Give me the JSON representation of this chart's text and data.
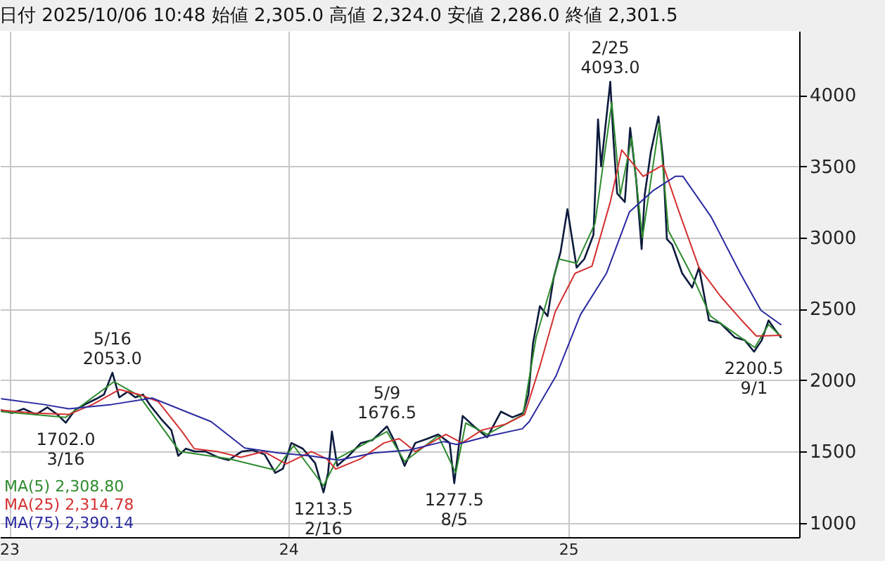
{
  "chart_data": {
    "type": "line",
    "title": "日付 2025/10/06 10:48 始値 2,305.0 高値 2,324.0 安値 2,286.0 終値 2,301.5",
    "xlim": [
      "2022-12-20",
      "2025-10-30"
    ],
    "xticks": [
      {
        "value": "2023-01-01",
        "label": "23"
      },
      {
        "value": "2024-01-01",
        "label": "24"
      },
      {
        "value": "2025-01-01",
        "label": "25"
      }
    ],
    "ylim": [
      900,
      4450
    ],
    "yticks": [
      1000,
      1500,
      2000,
      2500,
      3000,
      3500,
      4000
    ],
    "grid": true,
    "legend": "bottom left",
    "marker": "none",
    "line_style": "solid",
    "series": [
      {
        "color": "#0c1a3c",
        "x": [
          "2022-12-22",
          "2023-01-05",
          "2023-01-20",
          "2023-02-05",
          "2023-02-20",
          "2023-03-05",
          "2023-03-16",
          "2023-03-28",
          "2023-04-10",
          "2023-04-25",
          "2023-05-05",
          "2023-05-16",
          "2023-05-25",
          "2023-06-05",
          "2023-06-15",
          "2023-06-25",
          "2023-07-05",
          "2023-07-20",
          "2023-08-01",
          "2023-08-10",
          "2023-08-20",
          "2023-09-01",
          "2023-09-15",
          "2023-10-01",
          "2023-10-15",
          "2023-11-01",
          "2023-11-15",
          "2023-12-01",
          "2023-12-15",
          "2023-12-25",
          "2024-01-05",
          "2024-01-20",
          "2024-02-05",
          "2024-02-16",
          "2024-02-22",
          "2024-02-27",
          "2024-03-05",
          "2024-03-20",
          "2024-04-05",
          "2024-04-20",
          "2024-05-09",
          "2024-05-20",
          "2024-06-01",
          "2024-06-15",
          "2024-07-01",
          "2024-07-15",
          "2024-07-30",
          "2024-08-05",
          "2024-08-10",
          "2024-08-16",
          "2024-08-30",
          "2024-09-17",
          "2024-10-05",
          "2024-10-20",
          "2024-11-03",
          "2024-11-10",
          "2024-11-16",
          "2024-11-25",
          "2024-12-05",
          "2024-12-13",
          "2024-12-22",
          "2024-12-31",
          "2025-01-12",
          "2025-01-22",
          "2025-02-03",
          "2025-02-09",
          "2025-02-13",
          "2025-02-25",
          "2025-03-01",
          "2025-03-06",
          "2025-03-16",
          "2025-03-23",
          "2025-03-31",
          "2025-04-07",
          "2025-04-11",
          "2025-04-19",
          "2025-04-29",
          "2025-05-05",
          "2025-05-10",
          "2025-05-17",
          "2025-05-30",
          "2025-06-12",
          "2025-06-21",
          "2025-07-04",
          "2025-07-19",
          "2025-08-07",
          "2025-08-20",
          "2025-09-01",
          "2025-09-11",
          "2025-09-20",
          "2025-09-29",
          "2025-10-06"
        ],
        "values": [
          1790,
          1770,
          1800,
          1760,
          1810,
          1760,
          1702,
          1790,
          1830,
          1870,
          1900,
          2053,
          1880,
          1920,
          1880,
          1900,
          1820,
          1720,
          1650,
          1470,
          1520,
          1500,
          1500,
          1460,
          1440,
          1500,
          1510,
          1480,
          1350,
          1380,
          1560,
          1520,
          1420,
          1213.5,
          1350,
          1640,
          1400,
          1470,
          1560,
          1580,
          1676.5,
          1560,
          1400,
          1560,
          1590,
          1620,
          1560,
          1277.5,
          1500,
          1750,
          1680,
          1600,
          1780,
          1740,
          1770,
          1900,
          2260,
          2520,
          2450,
          2720,
          2900,
          3200,
          2790,
          2850,
          3020,
          3830,
          3500,
          4093,
          3700,
          3310,
          3250,
          3770,
          3400,
          2920,
          3300,
          3600,
          3850,
          3550,
          2990,
          2950,
          2750,
          2650,
          2790,
          2420,
          2400,
          2300,
          2280,
          2200.5,
          2280,
          2420,
          2350,
          2301.5
        ]
      },
      {
        "name": "MA(5) 2,308.80",
        "color": "#2e8b2e",
        "x": [
          "2022-12-22",
          "2023-03-16",
          "2023-05-18",
          "2023-06-20",
          "2023-08-12",
          "2023-10-15",
          "2023-12-15",
          "2024-01-08",
          "2024-02-16",
          "2024-03-05",
          "2024-05-09",
          "2024-06-01",
          "2024-07-15",
          "2024-08-07",
          "2024-08-20",
          "2024-09-17",
          "2024-11-03",
          "2024-11-20",
          "2024-12-20",
          "2025-01-12",
          "2025-02-05",
          "2025-02-27",
          "2025-03-10",
          "2025-03-25",
          "2025-04-08",
          "2025-04-30",
          "2025-05-12",
          "2025-06-15",
          "2025-07-06",
          "2025-09-02",
          "2025-09-20",
          "2025-10-06"
        ],
        "values": [
          1780,
          1740,
          1990,
          1890,
          1500,
          1450,
          1370,
          1540,
          1260,
          1450,
          1640,
          1430,
          1610,
          1350,
          1700,
          1620,
          1760,
          2300,
          2850,
          2820,
          3100,
          3950,
          3300,
          3700,
          3000,
          3800,
          3050,
          2700,
          2450,
          2230,
          2390,
          2308.8
        ]
      },
      {
        "name": "MA(25) 2,314.78",
        "color": "#d43030",
        "x": [
          "2022-12-22",
          "2023-02-01",
          "2023-03-20",
          "2023-04-20",
          "2023-05-25",
          "2023-06-20",
          "2023-07-15",
          "2023-08-15",
          "2023-08-31",
          "2023-09-30",
          "2023-10-31",
          "2023-11-30",
          "2023-12-29",
          "2024-01-31",
          "2024-02-20",
          "2024-03-03",
          "2024-04-05",
          "2024-05-05",
          "2024-05-25",
          "2024-06-15",
          "2024-07-05",
          "2024-07-25",
          "2024-08-15",
          "2024-09-10",
          "2024-10-10",
          "2024-11-05",
          "2024-11-25",
          "2024-12-15",
          "2025-01-10",
          "2025-02-01",
          "2025-02-25",
          "2025-03-12",
          "2025-04-09",
          "2025-05-05",
          "2025-05-26",
          "2025-06-21",
          "2025-07-19",
          "2025-08-15",
          "2025-09-04",
          "2025-10-06"
        ],
        "values": [
          1790,
          1770,
          1760,
          1830,
          1935,
          1900,
          1850,
          1640,
          1520,
          1500,
          1460,
          1500,
          1413,
          1500,
          1450,
          1377,
          1450,
          1560,
          1590,
          1500,
          1560,
          1620,
          1560,
          1650,
          1690,
          1760,
          2100,
          2480,
          2750,
          2800,
          3250,
          3615,
          3430,
          3510,
          3180,
          2790,
          2590,
          2425,
          2310,
          2314.78
        ]
      },
      {
        "name": "MA(75) 2,390.14",
        "color": "#2a2aa0",
        "x": [
          "2022-12-22",
          "2023-02-15",
          "2023-03-20",
          "2023-05-15",
          "2023-07-07",
          "2023-09-22",
          "2023-11-05",
          "2023-12-19",
          "2024-01-30",
          "2024-03-07",
          "2024-04-22",
          "2024-06-07",
          "2024-07-22",
          "2024-08-08",
          "2024-09-20",
          "2024-11-02",
          "2024-11-11",
          "2024-12-16",
          "2025-01-17",
          "2025-02-20",
          "2025-03-22",
          "2025-04-22",
          "2025-05-21",
          "2025-05-31",
          "2025-07-07",
          "2025-08-14",
          "2025-09-10",
          "2025-10-06"
        ],
        "values": [
          1870,
          1830,
          1800,
          1830,
          1875,
          1710,
          1525,
          1490,
          1470,
          1440,
          1490,
          1510,
          1570,
          1550,
          1610,
          1660,
          1710,
          2030,
          2460,
          2750,
          3180,
          3330,
          3430,
          3430,
          3145,
          2750,
          2490,
          2390.14
        ]
      }
    ],
    "annotations": [
      {
        "text": "5/16\n2053.0",
        "x": "2023-05-16",
        "y": 2053
      },
      {
        "text": "1702.0\n3/16",
        "x": "2023-03-16",
        "y": 1702
      },
      {
        "text": "1213.5\n2/16",
        "x": "2024-02-16",
        "y": 1213.5
      },
      {
        "text": "5/9\n1676.5",
        "x": "2024-05-09",
        "y": 1676.5
      },
      {
        "text": "1277.5\n8/5",
        "x": "2024-08-05",
        "y": 1277.5
      },
      {
        "text": "2/25\n4093.0",
        "x": "2025-02-25",
        "y": 4093
      },
      {
        "text": "2200.5\n9/1",
        "x": "2025-09-01",
        "y": 2200.5
      }
    ]
  }
}
